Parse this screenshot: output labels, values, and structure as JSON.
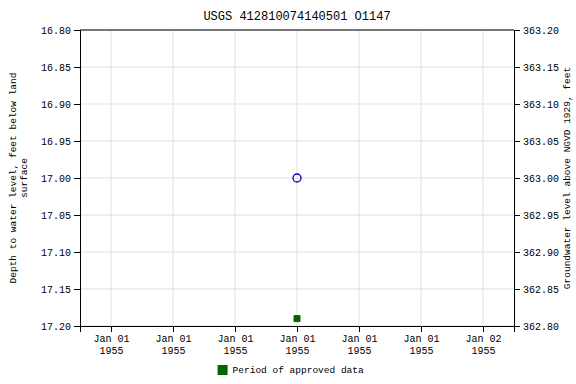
{
  "chart_data": {
    "type": "scatter",
    "title": "USGS 412810074140501 O1147",
    "y_label": "Depth to water level, feet below land\nsurface",
    "y2_label": "Groundwater level above NGVD 1929, feet",
    "categories": [
      "Jan 01\n1955",
      "Jan 01\n1955",
      "Jan 01\n1955",
      "Jan 01\n1955",
      "Jan 01\n1955",
      "Jan 01\n1955",
      "Jan 02\n1955"
    ],
    "series": [
      {
        "color": "#0000bb",
        "marker": "open-circle",
        "values": [
          null,
          null,
          null,
          17.0,
          null,
          null,
          null
        ]
      },
      {
        "name": "Period of approved data",
        "color": "#006600",
        "marker": "square",
        "values": [
          null,
          null,
          null,
          17.19,
          null,
          null,
          null
        ]
      }
    ],
    "ylim": [
      17.2,
      16.8
    ],
    "yticks": [
      {
        "value": 16.8,
        "label": "16.80"
      },
      {
        "value": 16.85,
        "label": "16.85"
      },
      {
        "value": 16.9,
        "label": "16.90"
      },
      {
        "value": 16.95,
        "label": "16.95"
      },
      {
        "value": 17.0,
        "label": "17.00"
      },
      {
        "value": 17.05,
        "label": "17.05"
      },
      {
        "value": 17.1,
        "label": "17.10"
      },
      {
        "value": 17.15,
        "label": "17.15"
      },
      {
        "value": 17.2,
        "label": "17.20"
      }
    ],
    "y2lim": [
      362.8,
      363.2
    ],
    "y2ticks": [
      {
        "value": 363.2,
        "label": "363.20"
      },
      {
        "value": 363.15,
        "label": "363.15"
      },
      {
        "value": 363.1,
        "label": "363.10"
      },
      {
        "value": 363.05,
        "label": "363.05"
      },
      {
        "value": 363.0,
        "label": "363.00"
      },
      {
        "value": 362.95,
        "label": "362.95"
      },
      {
        "value": 362.9,
        "label": "362.90"
      },
      {
        "value": 362.85,
        "label": "362.85"
      },
      {
        "value": 362.8,
        "label": "362.80"
      }
    ],
    "grid": true,
    "legend": "bottom"
  }
}
